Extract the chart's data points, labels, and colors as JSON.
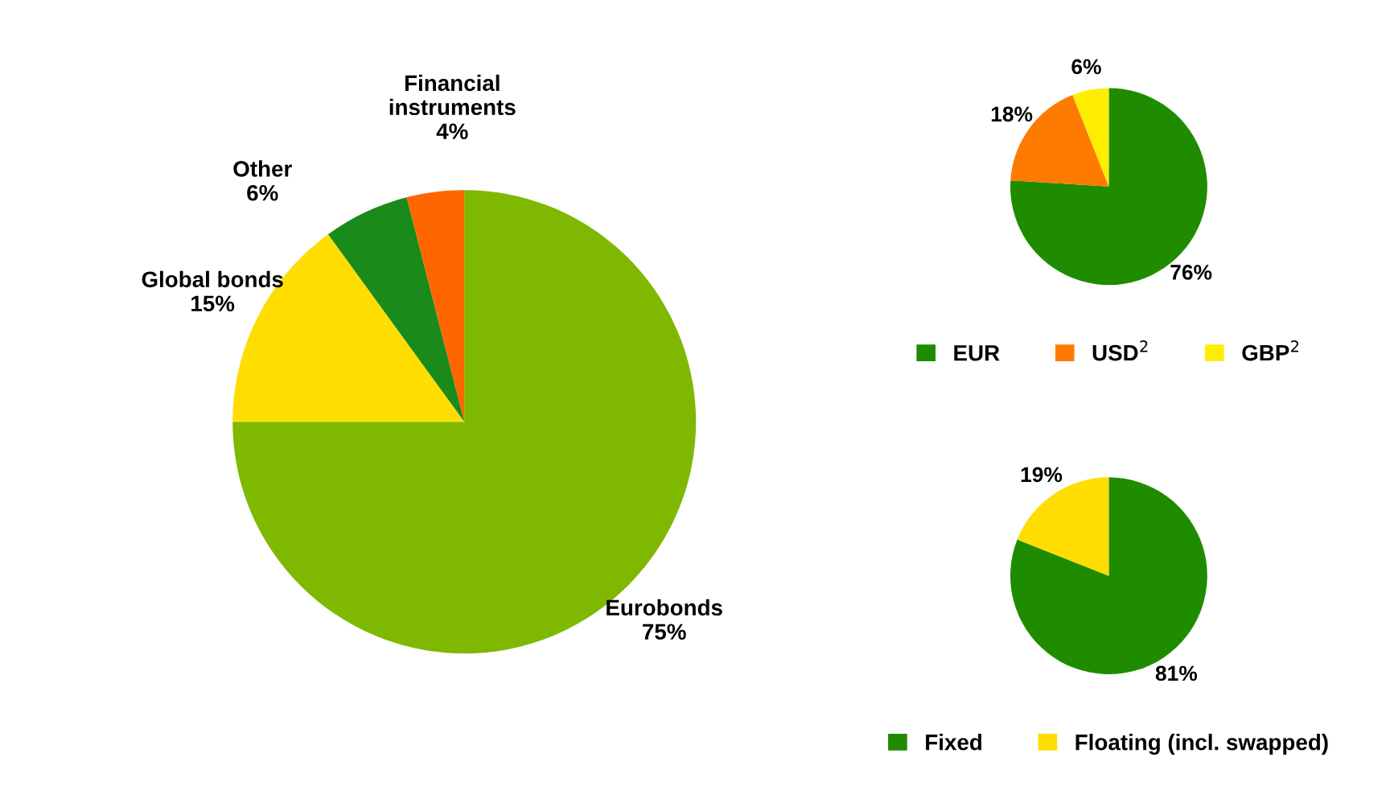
{
  "chart_data": [
    {
      "type": "pie",
      "categories": [
        "Eurobonds",
        "Global bonds",
        "Other",
        "Financial instruments"
      ],
      "values": [
        75,
        15,
        6,
        4
      ],
      "value_labels": [
        "75%",
        "15%",
        "6%",
        "4%"
      ],
      "colors": [
        "#7fb800",
        "#ffdd00",
        "#1a8a1a",
        "#ff6600"
      ],
      "legend": false
    },
    {
      "type": "pie",
      "categories": [
        "EUR",
        "USD$^{2}$",
        "GBP$^{2}$"
      ],
      "values": [
        76,
        18,
        6
      ],
      "value_labels": [
        "76%",
        "18%",
        "6%"
      ],
      "colors": [
        "#1f8c00",
        "#ff7a00",
        "#ffee00"
      ],
      "legend": "bottom"
    },
    {
      "type": "pie",
      "categories": [
        "Fixed",
        "Floating (incl. swapped)"
      ],
      "values": [
        81,
        19
      ],
      "value_labels": [
        "81%",
        "19%"
      ],
      "colors": [
        "#1f8c00",
        "#ffdd00"
      ],
      "legend": "bottom"
    }
  ]
}
